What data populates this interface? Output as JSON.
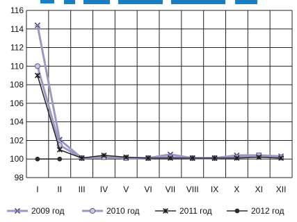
{
  "chart_data": {
    "type": "line",
    "categories": [
      "I",
      "II",
      "III",
      "IV",
      "V",
      "VI",
      "VII",
      "VIII",
      "IX",
      "X",
      "XI",
      "XII"
    ],
    "category_labels": [
      "I",
      "II",
      "III",
      "IV",
      "V",
      "VI",
      "VII",
      "VIII",
      "IX",
      "X",
      "XI",
      "XII"
    ],
    "ylim": [
      98,
      116
    ],
    "yticks": [
      98,
      100,
      102,
      104,
      106,
      108,
      110,
      112,
      114,
      116
    ],
    "grid": true,
    "legend_position": "bottom",
    "series": [
      {
        "name": "2009 год",
        "color": "#9b99c4",
        "marker": "star-cross",
        "values": [
          114.4,
          102.1,
          100.1,
          100.2,
          100.1,
          100.1,
          100.5,
          100.1,
          100.1,
          100.4,
          100.4,
          100.3
        ]
      },
      {
        "name": "2010 год",
        "color": "#9b99c4",
        "marker": "circle",
        "values": [
          110.0,
          101.5,
          100.1,
          100.2,
          100.1,
          100.1,
          100.2,
          100.1,
          100.1,
          100.2,
          100.4,
          100.2
        ]
      },
      {
        "name": "2011 год",
        "color": "#2b2b2b",
        "marker": "star",
        "values": [
          109.0,
          101.0,
          100.1,
          100.4,
          100.2,
          100.1,
          100.1,
          100.1,
          100.1,
          100.1,
          100.2,
          100.1
        ]
      },
      {
        "name": "2012 год",
        "color": "#2b2b2b",
        "marker": "filled-circle",
        "values": [
          100.0,
          100.0,
          null,
          null,
          null,
          null,
          null,
          null,
          null,
          null,
          null,
          null
        ]
      }
    ]
  },
  "colors": {
    "title": "#1a7fc2",
    "grid": "#222222",
    "axis_text": "#111111"
  }
}
